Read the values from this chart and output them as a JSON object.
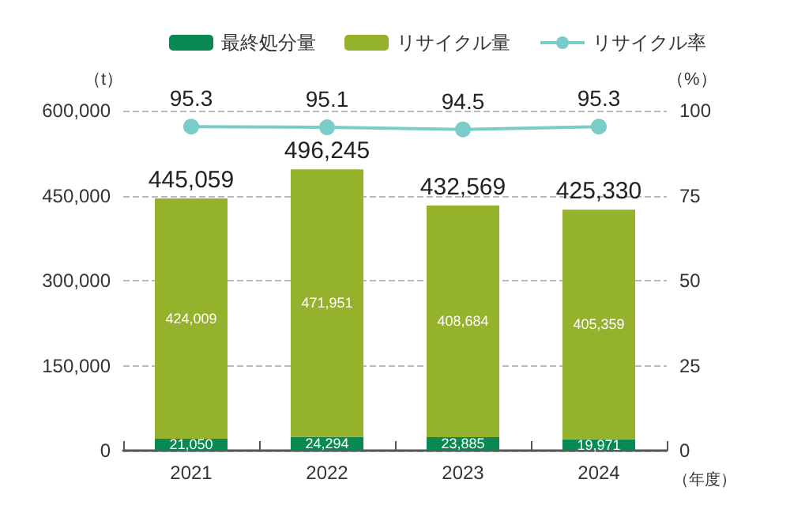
{
  "chart_data": {
    "type": "bar",
    "stacked": true,
    "categories": [
      "2021",
      "2022",
      "2023",
      "2024"
    ],
    "series": [
      {
        "name": "最終処分量",
        "color": "#0a8a52",
        "values": [
          21050,
          24294,
          23885,
          19971
        ],
        "value_labels": [
          "21,050",
          "24,294",
          "23,885",
          "19,971"
        ]
      },
      {
        "name": "リサイクル量",
        "color": "#94b22b",
        "values": [
          424009,
          471951,
          408684,
          405359
        ],
        "value_labels": [
          "424,009",
          "471,951",
          "408,684",
          "405,359"
        ]
      },
      {
        "name": "リサイクル率",
        "type": "line",
        "axis": "y2",
        "color": "#7accc8",
        "values": [
          95.3,
          95.1,
          94.5,
          95.3
        ]
      }
    ],
    "totals": [
      "445,059",
      "496,245",
      "432,569",
      "425,330"
    ],
    "data_labels": true,
    "ylabel": "（t）",
    "y2label": "（%）",
    "xlabel": "（年度）",
    "ylim": [
      0,
      600000
    ],
    "yticks": [
      0,
      {
        "value": 150000,
        "label": "150,000"
      },
      {
        "value": 300000,
        "label": "300,000"
      },
      {
        "value": 450000,
        "label": "450,000"
      },
      {
        "value": 600000,
        "label": "600,000"
      }
    ],
    "y2lim": [
      0,
      100
    ],
    "y2ticks": [
      0,
      25,
      50,
      75,
      100
    ],
    "grid": "y",
    "legend": "top right",
    "marker": "circle",
    "line_style": "solid"
  }
}
